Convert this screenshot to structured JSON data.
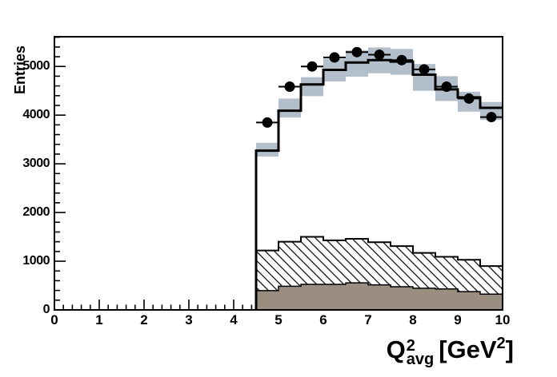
{
  "chart_data": {
    "type": "bar",
    "subtype": "stacked-histogram-with-data-points",
    "title": "",
    "ylabel": "Entries",
    "xlabel": {
      "base": "Q",
      "sup": "2",
      "sub": "avg",
      "unit_open": "[GeV",
      "unit_sup": "2",
      "unit_close": "]"
    },
    "xlim": [
      0,
      10
    ],
    "ylim": [
      0,
      5610
    ],
    "x_major_ticks": [
      0,
      1,
      2,
      3,
      4,
      5,
      6,
      7,
      8,
      9,
      10
    ],
    "x_minor_per_major": 5,
    "y_major_ticks": [
      0,
      1000,
      2000,
      3000,
      4000,
      5000
    ],
    "y_minor_per_major": 5,
    "grid": false,
    "legend": "none",
    "bin_edges": [
      4.5,
      5.0,
      5.5,
      6.0,
      6.5,
      7.0,
      7.5,
      8.0,
      8.5,
      9.0,
      9.5,
      10.0
    ],
    "series": [
      {
        "name": "mc-total-line",
        "values": [
          3270,
          4090,
          4630,
          4930,
          5080,
          5130,
          5100,
          4830,
          4530,
          4365,
          4150
        ]
      },
      {
        "name": "systematic-band-low",
        "values": [
          3150,
          3950,
          4390,
          4690,
          4790,
          4860,
          4830,
          4500,
          4290,
          4070,
          3900
        ]
      },
      {
        "name": "systematic-band-high",
        "values": [
          3430,
          4340,
          4780,
          5160,
          5330,
          5390,
          5360,
          5050,
          4800,
          4480,
          4270
        ]
      },
      {
        "name": "hatched-background",
        "values": [
          1220,
          1400,
          1500,
          1430,
          1460,
          1390,
          1310,
          1170,
          1090,
          1030,
          900
        ]
      },
      {
        "name": "solid-background",
        "values": [
          395,
          485,
          525,
          525,
          555,
          515,
          475,
          445,
          430,
          375,
          325
        ]
      },
      {
        "name": "data-points",
        "x": [
          4.75,
          5.25,
          5.75,
          6.25,
          6.75,
          7.25,
          7.75,
          8.25,
          8.75,
          9.25,
          9.75
        ],
        "y": [
          3848,
          4585,
          5000,
          5185,
          5295,
          5240,
          5130,
          4940,
          4585,
          4340,
          3960
        ]
      }
    ],
    "colors": {
      "band": "#b3c0cb",
      "solid_fill": "#9a8e80",
      "line": "#000000",
      "marker": "#000000",
      "background": "#ffffff"
    }
  }
}
